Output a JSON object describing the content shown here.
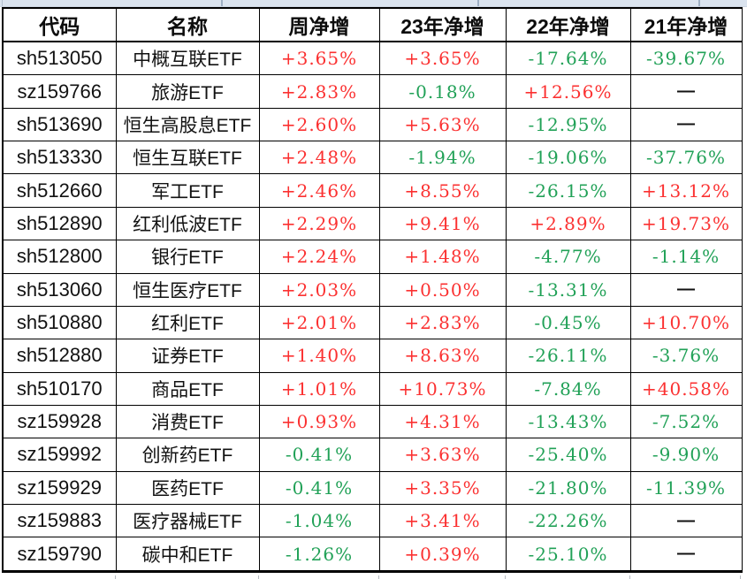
{
  "colors": {
    "positive": "#fb3131",
    "negative": "#21a157",
    "neutral_dash": "#111111",
    "table_border": "#000000",
    "top_strip_bg": "#dbe4ef",
    "top_strip_divider": "#9fb0c4",
    "outer_gridline": "#b5bac1"
  },
  "chart_data": {
    "type": "table",
    "columns": [
      "代码",
      "名称",
      "周净增",
      "23年净增",
      "22年净增",
      "21年净增"
    ],
    "rows": [
      [
        "sh513050",
        "中概互联ETF",
        "+3.65%",
        "+3.65%",
        "-17.64%",
        "-39.67%"
      ],
      [
        "sz159766",
        "旅游ETF",
        "+2.83%",
        "-0.18%",
        "+12.56%",
        "—"
      ],
      [
        "sh513690",
        "恒生高股息ETF",
        "+2.60%",
        "+5.63%",
        "-12.95%",
        "—"
      ],
      [
        "sh513330",
        "恒生互联ETF",
        "+2.48%",
        "-1.94%",
        "-19.06%",
        "-37.76%"
      ],
      [
        "sh512660",
        "军工ETF",
        "+2.46%",
        "+8.55%",
        "-26.15%",
        "+13.12%"
      ],
      [
        "sh512890",
        "红利低波ETF",
        "+2.29%",
        "+9.41%",
        "+2.89%",
        "+19.73%"
      ],
      [
        "sh512800",
        "银行ETF",
        "+2.24%",
        "+1.48%",
        "-4.77%",
        "-1.14%"
      ],
      [
        "sh513060",
        "恒生医疗ETF",
        "+2.03%",
        "+0.50%",
        "-13.31%",
        "—"
      ],
      [
        "sh510880",
        "红利ETF",
        "+2.01%",
        "+2.83%",
        "-0.45%",
        "+10.70%"
      ],
      [
        "sh512880",
        "证券ETF",
        "+1.40%",
        "+8.63%",
        "-26.11%",
        "-3.76%"
      ],
      [
        "sh510170",
        "商品ETF",
        "+1.01%",
        "+10.73%",
        "-7.84%",
        "+40.58%"
      ],
      [
        "sz159928",
        "消费ETF",
        "+0.93%",
        "+4.31%",
        "-13.43%",
        "-7.52%"
      ],
      [
        "sz159992",
        "创新药ETF",
        "-0.41%",
        "+3.63%",
        "-25.40%",
        "-9.90%"
      ],
      [
        "sz159929",
        "医药ETF",
        "-0.41%",
        "+3.35%",
        "-21.80%",
        "-11.39%"
      ],
      [
        "sz159883",
        "医疗器械ETF",
        "-1.04%",
        "+3.41%",
        "-22.26%",
        "—"
      ],
      [
        "sz159790",
        "碳中和ETF",
        "-1.26%",
        "+0.39%",
        "-25.10%",
        "—"
      ]
    ]
  }
}
